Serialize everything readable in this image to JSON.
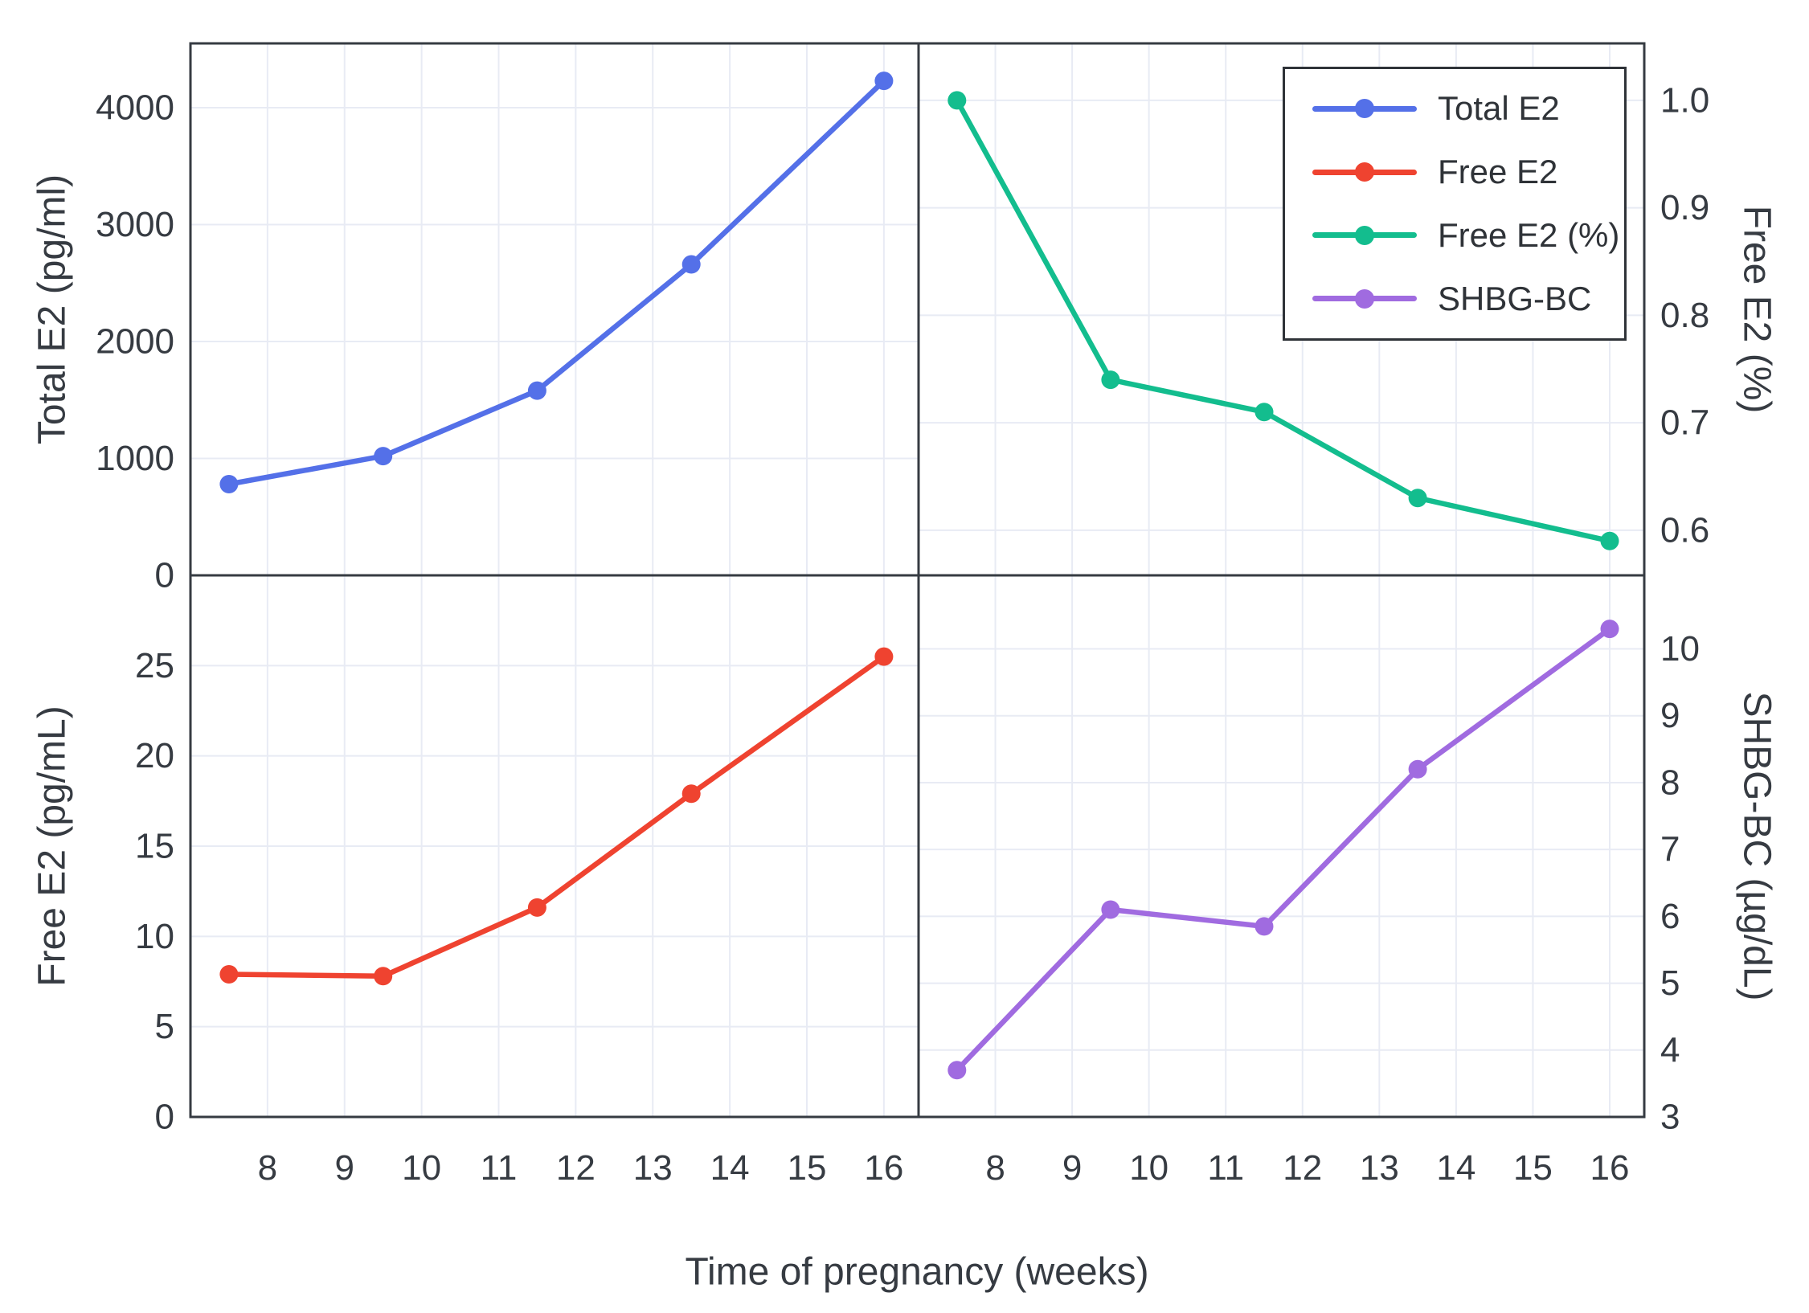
{
  "chart_data": {
    "type": "line",
    "layout": "2x2 panel grid with shared x-axis, legend inside top-right panel",
    "xlabel": "Time of pregnancy (weeks)",
    "x": [
      7.5,
      9.5,
      11.5,
      13.5,
      16
    ],
    "x_tick_labels": [
      "8",
      "9",
      "10",
      "11",
      "12",
      "13",
      "14",
      "15",
      "16"
    ],
    "xlim": [
      7.0,
      16.45
    ],
    "grid": true,
    "legend": [
      {
        "label": "Total E2",
        "color": "#5470e8"
      },
      {
        "label": "Free E2",
        "color": "#ef4330"
      },
      {
        "label": "Free E2 (%)",
        "color": "#13bd8e"
      },
      {
        "label": "SHBG-BC",
        "color": "#a06be0"
      }
    ],
    "panels": [
      {
        "position": "top-left",
        "series_name": "Total E2",
        "ylabel": "Total E2 (pg/ml)",
        "axis_side": "left",
        "color": "#5470e8",
        "ylim": [
          0,
          4550
        ],
        "y_tick_labels": [
          "0",
          "1000",
          "2000",
          "3000",
          "4000"
        ],
        "values": [
          780,
          1020,
          1580,
          2660,
          4230
        ]
      },
      {
        "position": "top-right",
        "series_name": "Free E2 (%)",
        "ylabel": "Free E2 (%)",
        "axis_side": "right",
        "color": "#13bd8e",
        "ylim": [
          0.558,
          1.053
        ],
        "y_tick_labels": [
          "0.6",
          "0.7",
          "0.8",
          "0.9",
          "1.0"
        ],
        "values": [
          1.0,
          0.74,
          0.71,
          0.63,
          0.59
        ]
      },
      {
        "position": "bottom-left",
        "series_name": "Free E2",
        "ylabel": "Free E2 (pg/mL)",
        "axis_side": "left",
        "color": "#ef4330",
        "ylim": [
          0,
          30
        ],
        "y_tick_labels": [
          "0",
          "5",
          "10",
          "15",
          "20",
          "25"
        ],
        "values": [
          7.9,
          7.8,
          11.6,
          17.9,
          25.5
        ]
      },
      {
        "position": "bottom-right",
        "series_name": "SHBG-BC",
        "ylabel": "SHBG-BC (µg/dL)",
        "axis_side": "right",
        "color": "#a06be0",
        "ylim": [
          3,
          11.1
        ],
        "y_tick_labels": [
          "3",
          "4",
          "5",
          "6",
          "7",
          "8",
          "9",
          "10"
        ],
        "values": [
          3.7,
          6.1,
          5.85,
          8.2,
          10.3
        ]
      }
    ],
    "style": {
      "grid_color": "#e8ebf4",
      "border_color": "#363b42",
      "text_color": "#363b42",
      "background": "#ffffff"
    }
  }
}
